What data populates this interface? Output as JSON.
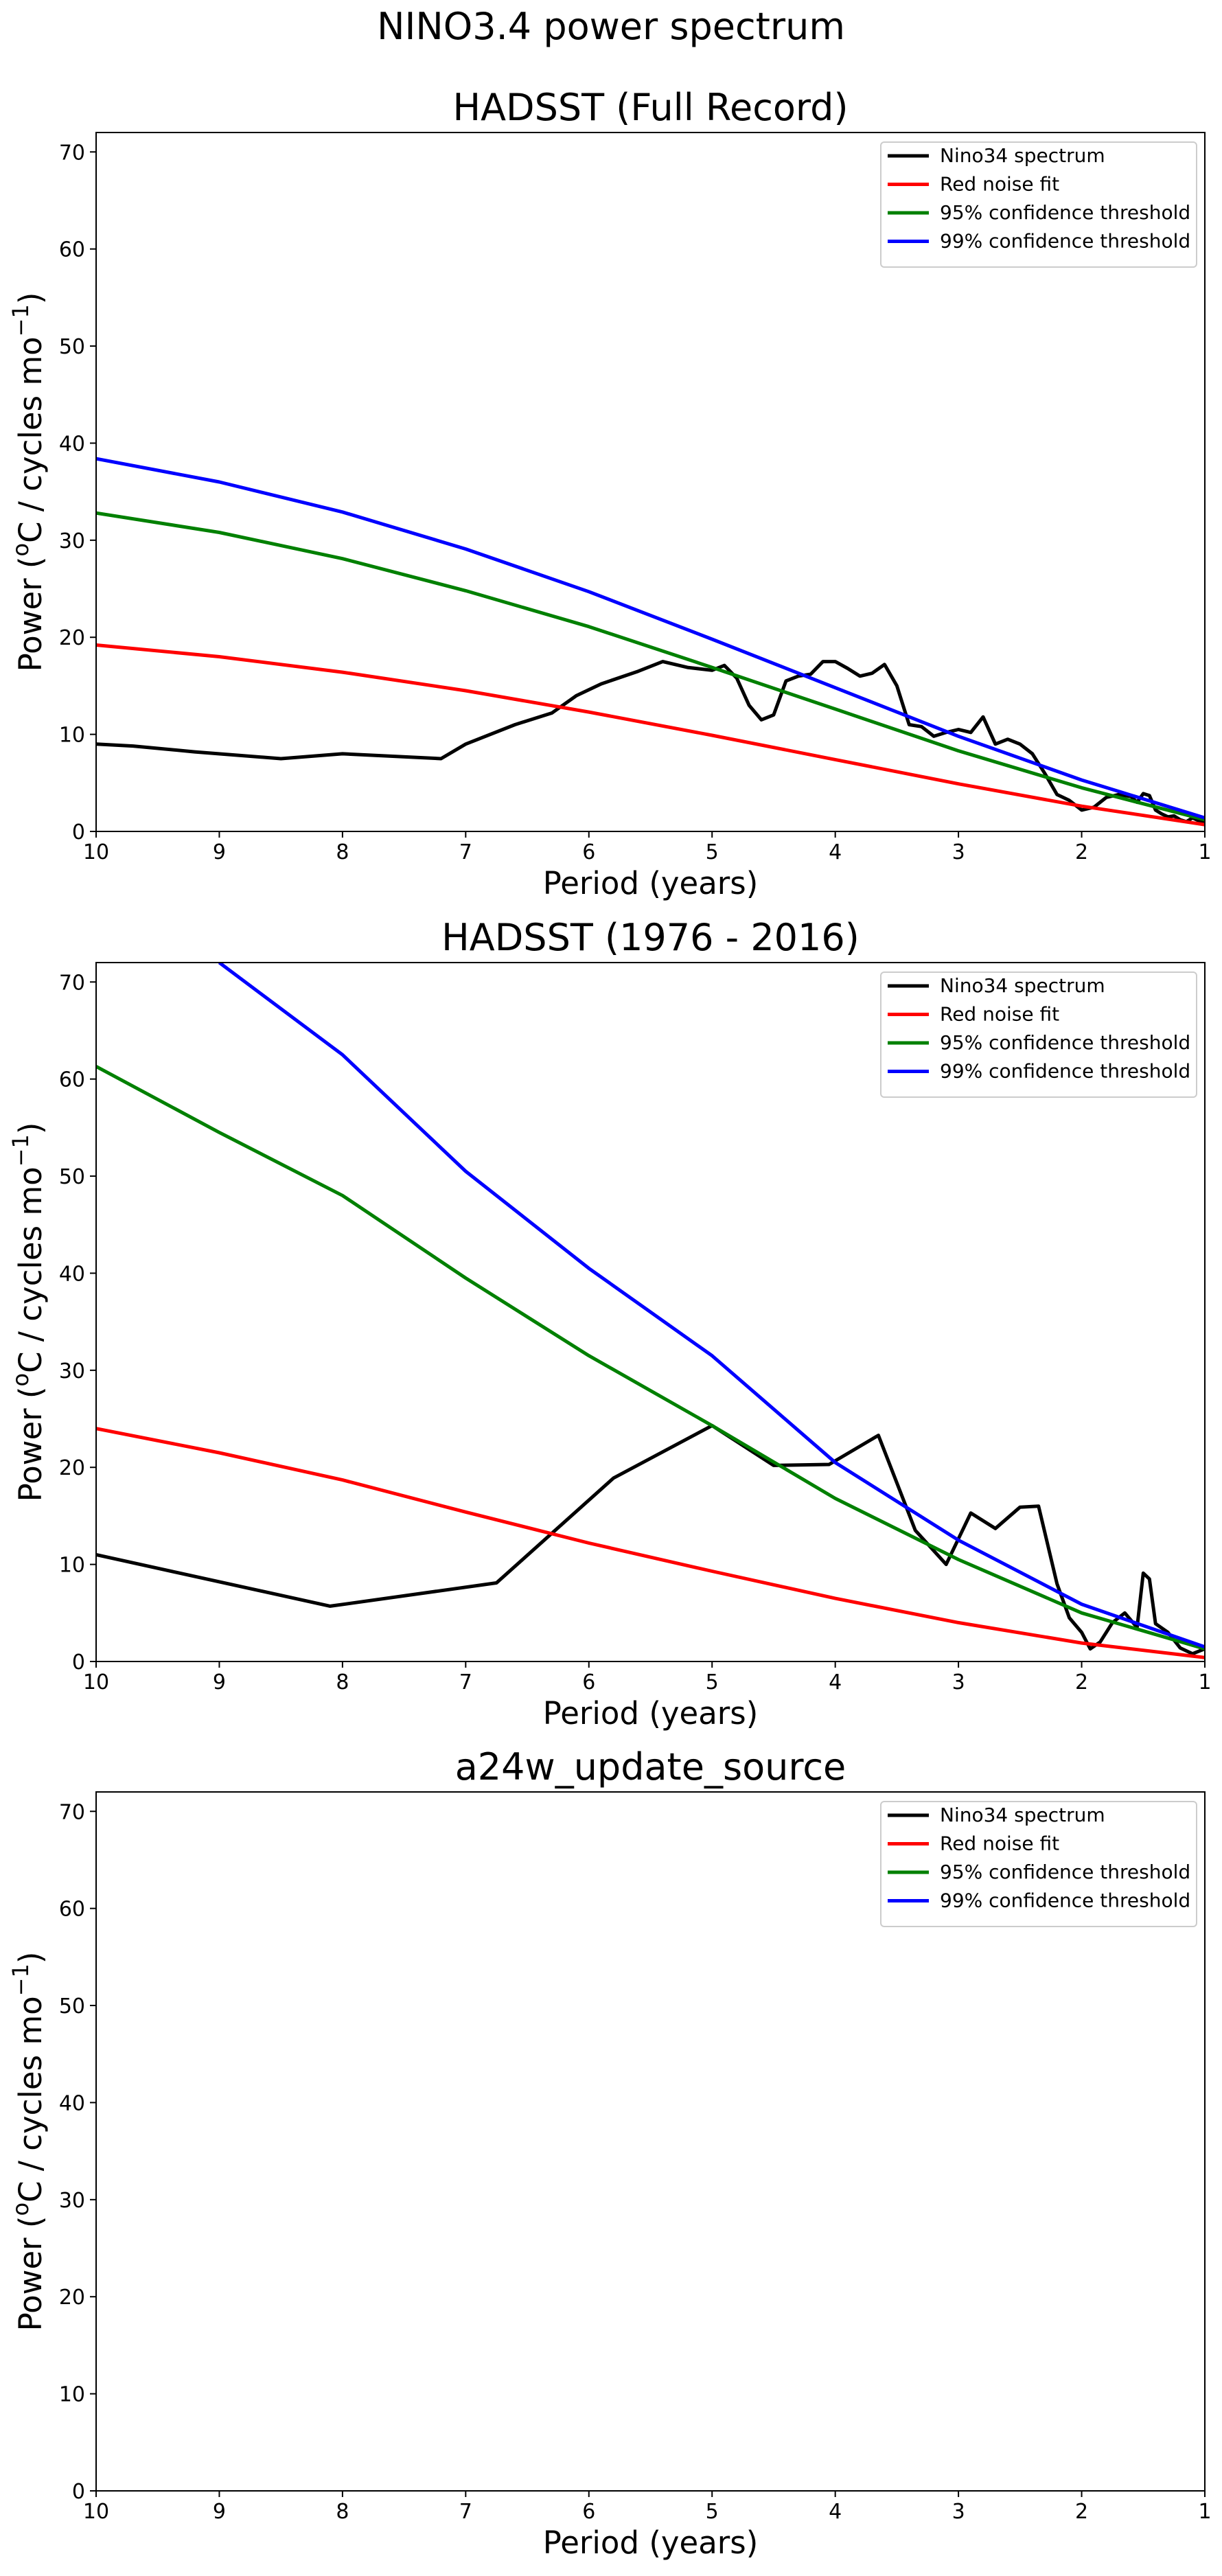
{
  "figure": {
    "suptitle": "NINO3.4 power spectrum"
  },
  "legend": {
    "entries": [
      {
        "label": "Nino34 spectrum",
        "color": "#000000"
      },
      {
        "label": "Red noise fit",
        "color": "#ff0000"
      },
      {
        "label": "95% confidence threshold",
        "color": "#008000"
      },
      {
        "label": "99% confidence threshold",
        "color": "#0000ff"
      }
    ],
    "placement": "upper-right"
  },
  "chart_data": [
    {
      "type": "line",
      "title": "HADSST (Full Record)",
      "xlabel": "Period (years)",
      "ylabel": "Power (",
      "ylabel_sup": "o",
      "ylabel_mid": "C / cycles mo",
      "ylabel_sup2": "−1",
      "ylabel_end": ")",
      "xlim": [
        10,
        1
      ],
      "ylim": [
        0,
        72
      ],
      "xticks": [
        10,
        9,
        8,
        7,
        6,
        5,
        4,
        3,
        2,
        1
      ],
      "yticks": [
        0,
        10,
        20,
        30,
        40,
        50,
        60,
        70
      ],
      "series": [
        {
          "name": "Nino34 spectrum",
          "color": "#000000",
          "x": [
            10,
            9.7,
            9.2,
            8.5,
            8.0,
            7.2,
            7.0,
            6.6,
            6.3,
            6.1,
            5.9,
            5.6,
            5.4,
            5.2,
            5.0,
            4.9,
            4.8,
            4.7,
            4.6,
            4.5,
            4.4,
            4.3,
            4.2,
            4.1,
            4.0,
            3.9,
            3.8,
            3.7,
            3.6,
            3.5,
            3.4,
            3.3,
            3.2,
            3.1,
            3.0,
            2.9,
            2.8,
            2.7,
            2.6,
            2.5,
            2.4,
            2.3,
            2.2,
            2.1,
            2.0,
            1.9,
            1.8,
            1.7,
            1.6,
            1.55,
            1.5,
            1.45,
            1.4,
            1.35,
            1.3,
            1.25,
            1.2,
            1.15,
            1.1,
            1.05,
            1.0
          ],
          "y": [
            9.0,
            8.8,
            8.2,
            7.5,
            8.0,
            7.5,
            9.0,
            11.0,
            12.2,
            14.0,
            15.2,
            16.5,
            17.5,
            16.9,
            16.6,
            17.1,
            15.8,
            13.0,
            11.5,
            12.0,
            15.5,
            16.0,
            16.2,
            17.5,
            17.5,
            16.8,
            16.0,
            16.3,
            17.2,
            15.0,
            11.0,
            10.8,
            9.8,
            10.2,
            10.5,
            10.2,
            11.8,
            9.0,
            9.5,
            9.0,
            8.0,
            6.0,
            3.8,
            3.2,
            2.2,
            2.5,
            3.5,
            3.8,
            3.6,
            3.0,
            3.9,
            3.7,
            2.2,
            1.8,
            1.5,
            1.6,
            1.2,
            1.0,
            1.4,
            1.1,
            1.0
          ]
        },
        {
          "name": "Red noise fit",
          "color": "#ff0000",
          "x": [
            10,
            9,
            8,
            7,
            6,
            5,
            4,
            3,
            2,
            1
          ],
          "y": [
            19.2,
            18.0,
            16.4,
            14.5,
            12.3,
            9.9,
            7.4,
            4.9,
            2.6,
            0.7
          ]
        },
        {
          "name": "95% confidence threshold",
          "color": "#008000",
          "x": [
            10,
            9,
            8,
            7,
            6,
            5,
            4,
            3,
            2,
            1
          ],
          "y": [
            32.8,
            30.8,
            28.1,
            24.8,
            21.1,
            16.9,
            12.6,
            8.3,
            4.5,
            1.2
          ]
        },
        {
          "name": "99% confidence threshold",
          "color": "#0000ff",
          "x": [
            10,
            9,
            8,
            7,
            6,
            5,
            4,
            3,
            2,
            1
          ],
          "y": [
            38.4,
            36.0,
            32.9,
            29.1,
            24.7,
            19.8,
            14.8,
            9.8,
            5.3,
            1.4
          ]
        }
      ]
    },
    {
      "type": "line",
      "title": "HADSST (1976 - 2016)",
      "xlabel": "Period (years)",
      "ylabel": "Power (",
      "ylabel_sup": "o",
      "ylabel_mid": "C / cycles mo",
      "ylabel_sup2": "−1",
      "ylabel_end": ")",
      "xlim": [
        10,
        1
      ],
      "ylim": [
        0,
        72
      ],
      "xticks": [
        10,
        9,
        8,
        7,
        6,
        5,
        4,
        3,
        2,
        1
      ],
      "yticks": [
        0,
        10,
        20,
        30,
        40,
        50,
        60,
        70
      ],
      "series": [
        {
          "name": "Nino34 spectrum",
          "color": "#000000",
          "x": [
            10,
            8.1,
            6.75,
            5.8,
            5.0,
            4.5,
            4.05,
            3.65,
            3.35,
            3.1,
            2.9,
            2.7,
            2.5,
            2.35,
            2.2,
            2.1,
            2.0,
            1.93,
            1.85,
            1.75,
            1.65,
            1.55,
            1.5,
            1.45,
            1.4,
            1.3,
            1.2,
            1.1,
            1.0
          ],
          "y": [
            11.0,
            5.7,
            8.1,
            18.9,
            24.3,
            20.2,
            20.3,
            23.3,
            13.5,
            10.0,
            15.3,
            13.7,
            15.9,
            16.0,
            8.0,
            4.5,
            3.0,
            1.3,
            2.0,
            4.0,
            5.0,
            3.5,
            9.1,
            8.5,
            3.9,
            3.0,
            1.4,
            0.8,
            1.3
          ]
        },
        {
          "name": "Red noise fit",
          "color": "#ff0000",
          "x": [
            10,
            9,
            8,
            7,
            6,
            5,
            4,
            3,
            2,
            1
          ],
          "y": [
            24.0,
            21.5,
            18.7,
            15.4,
            12.2,
            9.3,
            6.5,
            4.0,
            1.9,
            0.4
          ]
        },
        {
          "name": "95% confidence threshold",
          "color": "#008000",
          "x": [
            10,
            9,
            8,
            7,
            6,
            5,
            4,
            3,
            2,
            1
          ],
          "y": [
            61.3,
            54.5,
            48.0,
            39.5,
            31.5,
            24.3,
            16.8,
            10.5,
            5.0,
            1.3
          ]
        },
        {
          "name": "99% confidence threshold",
          "color": "#0000ff",
          "x": [
            9.0,
            8.0,
            7.0,
            6.0,
            5.0,
            4.0,
            3.0,
            2.0,
            1.0
          ],
          "y": [
            72.0,
            62.5,
            50.5,
            40.5,
            31.5,
            20.5,
            12.5,
            5.9,
            1.5
          ]
        }
      ]
    },
    {
      "type": "line",
      "title": "a24w_update_source",
      "xlabel": "Period (years)",
      "ylabel": "Power (",
      "ylabel_sup": "o",
      "ylabel_mid": "C / cycles mo",
      "ylabel_sup2": "−1",
      "ylabel_end": ")",
      "xlim": [
        10,
        1
      ],
      "ylim": [
        0,
        72
      ],
      "xticks": [
        10,
        9,
        8,
        7,
        6,
        5,
        4,
        3,
        2,
        1
      ],
      "yticks": [
        0,
        10,
        20,
        30,
        40,
        50,
        60,
        70
      ],
      "series": []
    }
  ]
}
